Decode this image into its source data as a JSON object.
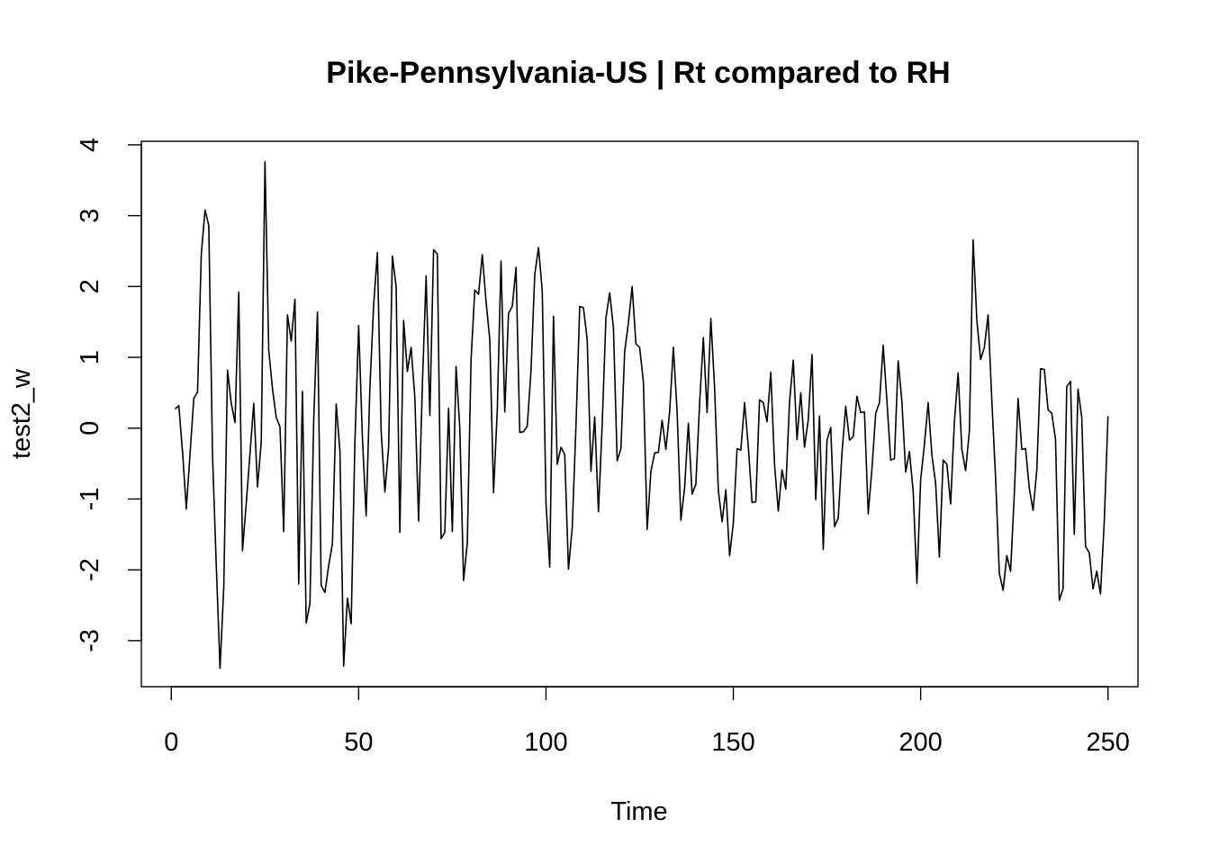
{
  "chart_data": {
    "type": "line",
    "title": "Pike-Pennsylvania-US | Rt compared to RH",
    "xlabel": "Time",
    "ylabel": "test2_w",
    "xlim": [
      -8,
      258
    ],
    "ylim": [
      -3.65,
      4.05
    ],
    "xticks": [
      0,
      50,
      100,
      150,
      200,
      250
    ],
    "yticks": [
      -3,
      -2,
      -1,
      0,
      1,
      2,
      3,
      4
    ],
    "grid": false,
    "line_color": "#000000",
    "x_start": 1,
    "values": [
      0.27,
      0.32,
      -0.34,
      -1.14,
      -0.36,
      0.42,
      0.51,
      2.46,
      3.08,
      2.86,
      -0.38,
      -1.94,
      -3.39,
      -2.25,
      0.82,
      0.35,
      0.08,
      1.92,
      -1.73,
      -1.06,
      -0.36,
      0.35,
      -0.83,
      -0.2,
      3.76,
      1.1,
      0.56,
      0.15,
      0.02,
      -1.46,
      1.6,
      1.23,
      1.82,
      -2.2,
      0.52,
      -2.75,
      -2.48,
      0.1,
      1.64,
      -2.22,
      -2.32,
      -1.94,
      -1.63,
      0.34,
      -0.32,
      -3.36,
      -2.4,
      -2.76,
      -0.2,
      1.45,
      -0.13,
      -1.24,
      0.57,
      1.74,
      2.48,
      -0.04,
      -0.9,
      -0.27,
      2.43,
      2.0,
      -1.47,
      1.52,
      0.8,
      1.14,
      0.43,
      -1.31,
      0.6,
      2.15,
      0.18,
      2.52,
      2.46,
      -1.56,
      -1.47,
      0.28,
      -1.46,
      0.87,
      0.0,
      -2.15,
      -1.62,
      0.97,
      1.95,
      1.89,
      2.45,
      1.79,
      1.25,
      -0.91,
      0.26,
      2.36,
      0.23,
      1.62,
      1.72,
      2.27,
      -0.06,
      -0.05,
      0.03,
      0.81,
      2.17,
      2.55,
      1.94,
      -1.05,
      -1.96,
      1.58,
      -0.51,
      -0.27,
      -0.37,
      -1.99,
      -1.41,
      0.03,
      1.72,
      1.7,
      1.25,
      -0.61,
      0.16,
      -1.18,
      0.05,
      1.56,
      1.91,
      1.42,
      -0.46,
      -0.29,
      1.08,
      1.49,
      2.0,
      1.19,
      1.14,
      0.65,
      -1.43,
      -0.61,
      -0.35,
      -0.34,
      0.11,
      -0.3,
      0.23,
      1.14,
      0.23,
      -1.3,
      -0.84,
      0.07,
      -0.93,
      -0.79,
      0.35,
      1.28,
      0.22,
      1.55,
      0.57,
      -0.88,
      -1.32,
      -0.87,
      -1.8,
      -1.34,
      -0.29,
      -0.31,
      0.36,
      -0.26,
      -1.05,
      -1.04,
      0.4,
      0.36,
      0.09,
      0.79,
      -0.51,
      -1.17,
      -0.59,
      -0.86,
      0.37,
      0.96,
      -0.16,
      0.5,
      -0.27,
      0.12,
      1.04,
      -1.01,
      0.17,
      -1.71,
      -0.17,
      0.01,
      -1.39,
      -1.27,
      -0.35,
      0.31,
      -0.17,
      -0.12,
      0.45,
      0.22,
      0.23,
      -1.21,
      -0.57,
      0.21,
      0.36,
      1.17,
      0.38,
      -0.45,
      -0.43,
      0.95,
      0.37,
      -0.62,
      -0.33,
      -0.89,
      -2.19,
      -0.73,
      -0.23,
      0.36,
      -0.38,
      -0.78,
      -1.82,
      -0.45,
      -0.51,
      -1.07,
      0.09,
      0.78,
      -0.3,
      -0.6,
      -0.04,
      2.66,
      1.52,
      0.97,
      1.14,
      1.6,
      0.38,
      -0.71,
      -2.05,
      -2.29,
      -1.8,
      -2.02,
      -0.92,
      0.42,
      -0.3,
      -0.29,
      -0.85,
      -1.16,
      -0.59,
      0.84,
      0.83,
      0.26,
      0.21,
      -0.16,
      -2.43,
      -2.27,
      0.59,
      0.66,
      -1.5,
      0.55,
      0.15,
      -1.67,
      -1.76,
      -2.27,
      -2.02,
      -2.34,
      -1.32,
      0.17
    ]
  }
}
